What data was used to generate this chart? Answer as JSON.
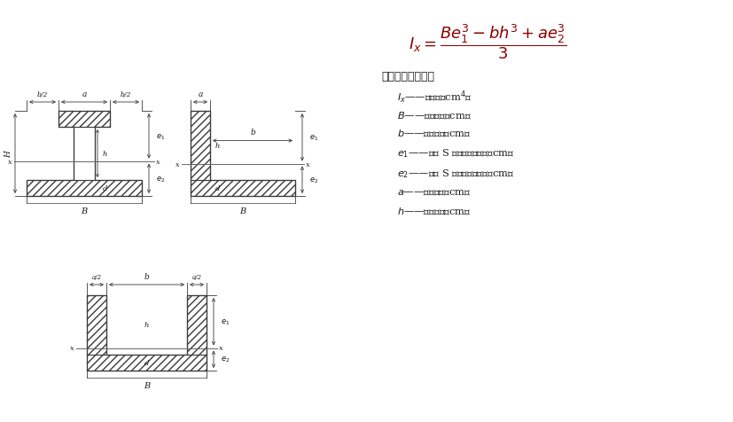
{
  "bg_color": "#ffffff",
  "line_color": "#3a3a3a",
  "text_color": "#1a1a1a",
  "formula_color": "#8B0000",
  "symbol_title": "符号意义及单位：",
  "symbols": [
    "$I_x$——惯性矩（cm$^4$）",
    "$B$——如图所示（cm）",
    "$b$——如图所示（cm）",
    "$e_1$——重心 S 到相应边的距离（cm）",
    "$e_2$——重心 S 到相应边的距离（cm）",
    "$a$——如图所示（cm）",
    "$h$——如图所示（cm）"
  ]
}
